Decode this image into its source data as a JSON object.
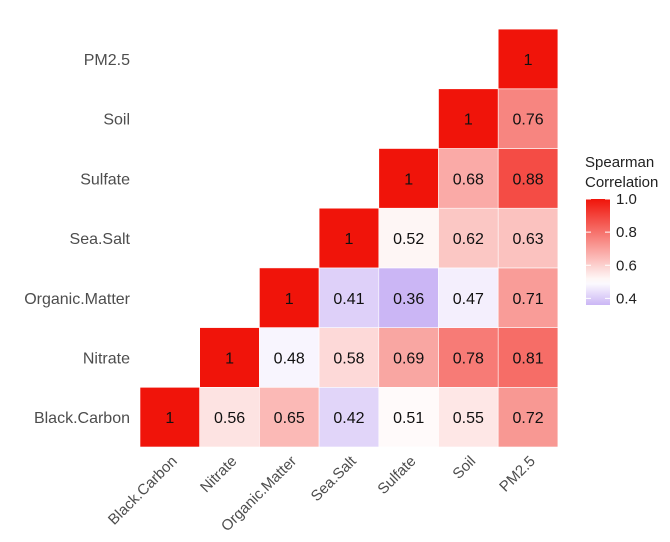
{
  "chart_data": {
    "type": "heatmap",
    "legend_title": [
      "Spearman",
      "Correlation"
    ],
    "legend_ticks": [
      1.0,
      0.8,
      0.6,
      0.4
    ],
    "legend_tick_labels": [
      "1.0",
      "0.8",
      "0.6",
      "0.4"
    ],
    "color_scale": {
      "low": "#cbb6f5",
      "mid": "#ffffff",
      "high": "#f0140a",
      "min": 0.36,
      "midpoint": 0.5,
      "max": 1.0
    },
    "x_categories": [
      "Black.Carbon",
      "Nitrate",
      "Organic.Matter",
      "Sea.Salt",
      "Sulfate",
      "Soil",
      "PM2.5"
    ],
    "y_categories": [
      "Black.Carbon",
      "Nitrate",
      "Organic.Matter",
      "Sea.Salt",
      "Sulfate",
      "Soil",
      "PM2.5"
    ],
    "cells": [
      {
        "x": "Black.Carbon",
        "y": "Black.Carbon",
        "value": 1,
        "label": "1"
      },
      {
        "x": "Nitrate",
        "y": "Black.Carbon",
        "value": 0.56,
        "label": "0.56"
      },
      {
        "x": "Organic.Matter",
        "y": "Black.Carbon",
        "value": 0.65,
        "label": "0.65"
      },
      {
        "x": "Sea.Salt",
        "y": "Black.Carbon",
        "value": 0.42,
        "label": "0.42"
      },
      {
        "x": "Sulfate",
        "y": "Black.Carbon",
        "value": 0.51,
        "label": "0.51"
      },
      {
        "x": "Soil",
        "y": "Black.Carbon",
        "value": 0.55,
        "label": "0.55"
      },
      {
        "x": "PM2.5",
        "y": "Black.Carbon",
        "value": 0.72,
        "label": "0.72"
      },
      {
        "x": "Nitrate",
        "y": "Nitrate",
        "value": 1,
        "label": "1"
      },
      {
        "x": "Organic.Matter",
        "y": "Nitrate",
        "value": 0.48,
        "label": "0.48"
      },
      {
        "x": "Sea.Salt",
        "y": "Nitrate",
        "value": 0.58,
        "label": "0.58"
      },
      {
        "x": "Sulfate",
        "y": "Nitrate",
        "value": 0.69,
        "label": "0.69"
      },
      {
        "x": "Soil",
        "y": "Nitrate",
        "value": 0.78,
        "label": "0.78"
      },
      {
        "x": "PM2.5",
        "y": "Nitrate",
        "value": 0.81,
        "label": "0.81"
      },
      {
        "x": "Organic.Matter",
        "y": "Organic.Matter",
        "value": 1,
        "label": "1"
      },
      {
        "x": "Sea.Salt",
        "y": "Organic.Matter",
        "value": 0.41,
        "label": "0.41"
      },
      {
        "x": "Sulfate",
        "y": "Organic.Matter",
        "value": 0.36,
        "label": "0.36"
      },
      {
        "x": "Soil",
        "y": "Organic.Matter",
        "value": 0.47,
        "label": "0.47"
      },
      {
        "x": "PM2.5",
        "y": "Organic.Matter",
        "value": 0.71,
        "label": "0.71"
      },
      {
        "x": "Sea.Salt",
        "y": "Sea.Salt",
        "value": 1,
        "label": "1"
      },
      {
        "x": "Sulfate",
        "y": "Sea.Salt",
        "value": 0.52,
        "label": "0.52"
      },
      {
        "x": "Soil",
        "y": "Sea.Salt",
        "value": 0.62,
        "label": "0.62"
      },
      {
        "x": "PM2.5",
        "y": "Sea.Salt",
        "value": 0.63,
        "label": "0.63"
      },
      {
        "x": "Sulfate",
        "y": "Sulfate",
        "value": 1,
        "label": "1"
      },
      {
        "x": "Soil",
        "y": "Sulfate",
        "value": 0.68,
        "label": "0.68"
      },
      {
        "x": "PM2.5",
        "y": "Sulfate",
        "value": 0.88,
        "label": "0.88"
      },
      {
        "x": "Soil",
        "y": "Soil",
        "value": 1,
        "label": "1"
      },
      {
        "x": "PM2.5",
        "y": "Soil",
        "value": 0.76,
        "label": "0.76"
      },
      {
        "x": "PM2.5",
        "y": "PM2.5",
        "value": 1,
        "label": "1"
      }
    ]
  }
}
